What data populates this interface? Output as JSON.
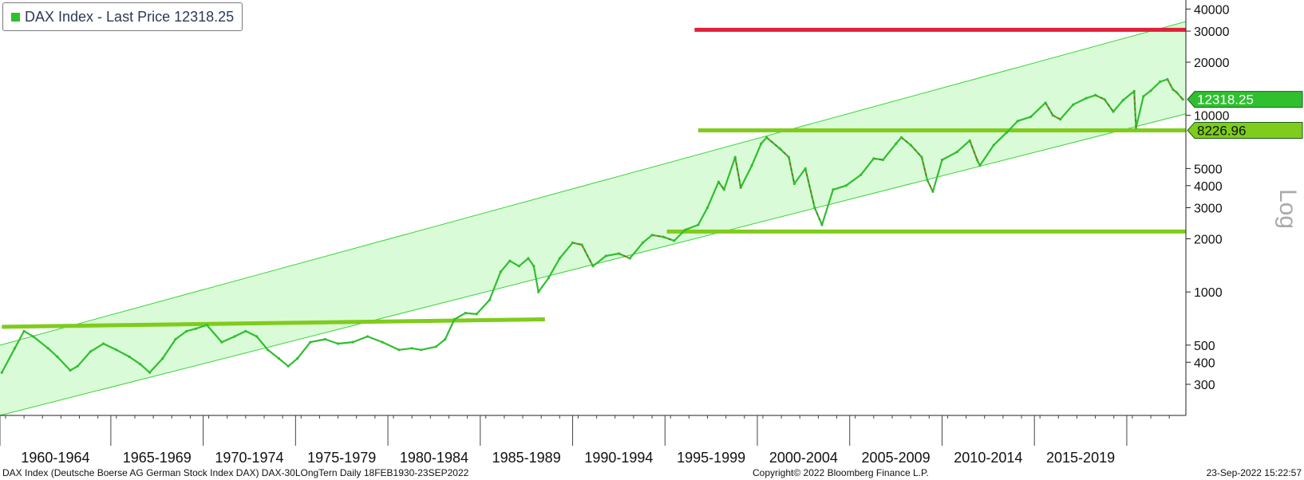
{
  "legend": {
    "label": "DAX Index - Last Price 12318.25",
    "swatch_color": "#2fbf2f"
  },
  "footer": {
    "left": "DAX Index (Deutsche Boerse AG German Stock Index DAX) DAX-30LOngTern  Daily 18FEB1930-23SEP2022",
    "center": "Copyright© 2022 Bloomberg Finance L.P.",
    "right": "23-Sep-2022 15:22:57"
  },
  "chart_data": {
    "type": "line",
    "title": "",
    "ylabel": "Log",
    "y_scale": "log",
    "ylim": [
      200,
      45000
    ],
    "xlim": [
      1958.7,
      2022.9
    ],
    "y_ticks": [
      300,
      400,
      500,
      1000,
      2000,
      3000,
      4000,
      5000,
      10000,
      20000,
      30000,
      40000
    ],
    "x_period_labels": [
      "1960-1964",
      "1965-1969",
      "1970-1974",
      "1975-1979",
      "1980-1984",
      "1985-1989",
      "1990-1994",
      "1995-1999",
      "2000-2004",
      "2005-2009",
      "2010-2014",
      "2015-2019"
    ],
    "x_period_starts": [
      1958.7,
      1964.7,
      1969.7,
      1974.7,
      1979.7,
      1984.7,
      1989.7,
      1994.7,
      1999.7,
      2004.7,
      2009.7,
      2014.7,
      2019.7
    ],
    "series": [
      {
        "name": "DAX Index",
        "color": "#2fbf2f",
        "down_color": "#d22020",
        "x": [
          1958.8,
          1959.5,
          1960.0,
          1960.5,
          1961.3,
          1961.8,
          1962.5,
          1962.9,
          1963.6,
          1964.3,
          1965.0,
          1965.7,
          1966.3,
          1966.8,
          1967.5,
          1968.2,
          1968.8,
          1969.3,
          1969.9,
          1970.7,
          1971.4,
          1972.0,
          1972.6,
          1973.2,
          1973.8,
          1974.3,
          1974.8,
          1975.5,
          1976.3,
          1977.0,
          1977.8,
          1978.6,
          1979.4,
          1980.3,
          1981.0,
          1981.5,
          1982.3,
          1982.8,
          1983.3,
          1983.9,
          1984.5,
          1985.2,
          1985.8,
          1986.3,
          1986.8,
          1987.3,
          1987.6,
          1987.85,
          1988.4,
          1989.0,
          1989.7,
          1990.2,
          1990.8,
          1991.5,
          1992.2,
          1992.8,
          1993.5,
          1994.0,
          1994.6,
          1995.2,
          1995.8,
          1996.5,
          1997.0,
          1997.6,
          1997.9,
          1998.5,
          1998.8,
          1999.4,
          1999.9,
          2000.2,
          2000.9,
          2001.4,
          2001.7,
          2002.3,
          2002.8,
          2003.2,
          2003.8,
          2004.5,
          2005.3,
          2006.0,
          2006.5,
          2007.2,
          2007.5,
          2008.0,
          2008.6,
          2008.9,
          2009.2,
          2009.7,
          2010.5,
          2011.2,
          2011.6,
          2011.75,
          2012.5,
          2013.2,
          2013.8,
          2014.5,
          2015.3,
          2015.7,
          2016.1,
          2016.8,
          2017.5,
          2018.0,
          2018.5,
          2018.97,
          2019.5,
          2020.1,
          2020.2,
          2020.6,
          2021.0,
          2021.5,
          2021.9,
          2022.2,
          2022.4,
          2022.73
        ],
        "values": [
          350,
          480,
          600,
          560,
          480,
          430,
          360,
          380,
          460,
          510,
          470,
          430,
          390,
          350,
          420,
          540,
          600,
          620,
          650,
          520,
          560,
          600,
          560,
          470,
          420,
          380,
          420,
          520,
          540,
          510,
          520,
          560,
          520,
          470,
          480,
          470,
          490,
          540,
          700,
          760,
          750,
          900,
          1300,
          1500,
          1400,
          1550,
          1400,
          1000,
          1200,
          1550,
          1900,
          1850,
          1400,
          1600,
          1650,
          1550,
          1900,
          2100,
          2050,
          1950,
          2250,
          2400,
          3000,
          4200,
          3800,
          5800,
          3900,
          5200,
          6900,
          7500,
          6500,
          5800,
          4100,
          5000,
          3000,
          2400,
          3800,
          4000,
          4600,
          5700,
          5600,
          6900,
          7500,
          6800,
          5800,
          4300,
          3700,
          5600,
          6200,
          7200,
          5600,
          5200,
          6800,
          8000,
          9300,
          9800,
          11800,
          10000,
          9500,
          11500,
          12500,
          13000,
          12300,
          10500,
          12200,
          13700,
          8500,
          12800,
          13800,
          15500,
          16000,
          14000,
          13500,
          12318.25
        ]
      }
    ],
    "channel": {
      "color": "#3ad43a",
      "fill": "#dafbd7",
      "upper": {
        "x": [
          1958.7,
          2022.9
        ],
        "y": [
          500,
          34000
        ]
      },
      "lower": {
        "x": [
          1958.7,
          2022.9
        ],
        "y": [
          200,
          10200
        ]
      }
    },
    "reference_lines": [
      {
        "color": "#e11f3a",
        "x": [
          1996.3,
          2022.9
        ],
        "y": [
          30500,
          30500
        ]
      },
      {
        "color": "#7fcc1c",
        "x": [
          1958.8,
          1988.2
        ],
        "y": [
          635,
          700
        ]
      },
      {
        "color": "#7fcc1c",
        "x": [
          1996.5,
          2022.9
        ],
        "y": [
          8226.96,
          8226.96
        ]
      },
      {
        "color": "#7fcc1c",
        "x": [
          1994.8,
          2022.9
        ],
        "y": [
          2200,
          2200
        ]
      }
    ],
    "price_tags": [
      {
        "label": "12318.25",
        "value": 12318.25,
        "fill": "#2fbf2f",
        "text_color": "#ffffff"
      },
      {
        "label": "8226.96",
        "value": 8226.96,
        "fill": "#7fcc1c",
        "text_color": "#111111"
      }
    ]
  }
}
